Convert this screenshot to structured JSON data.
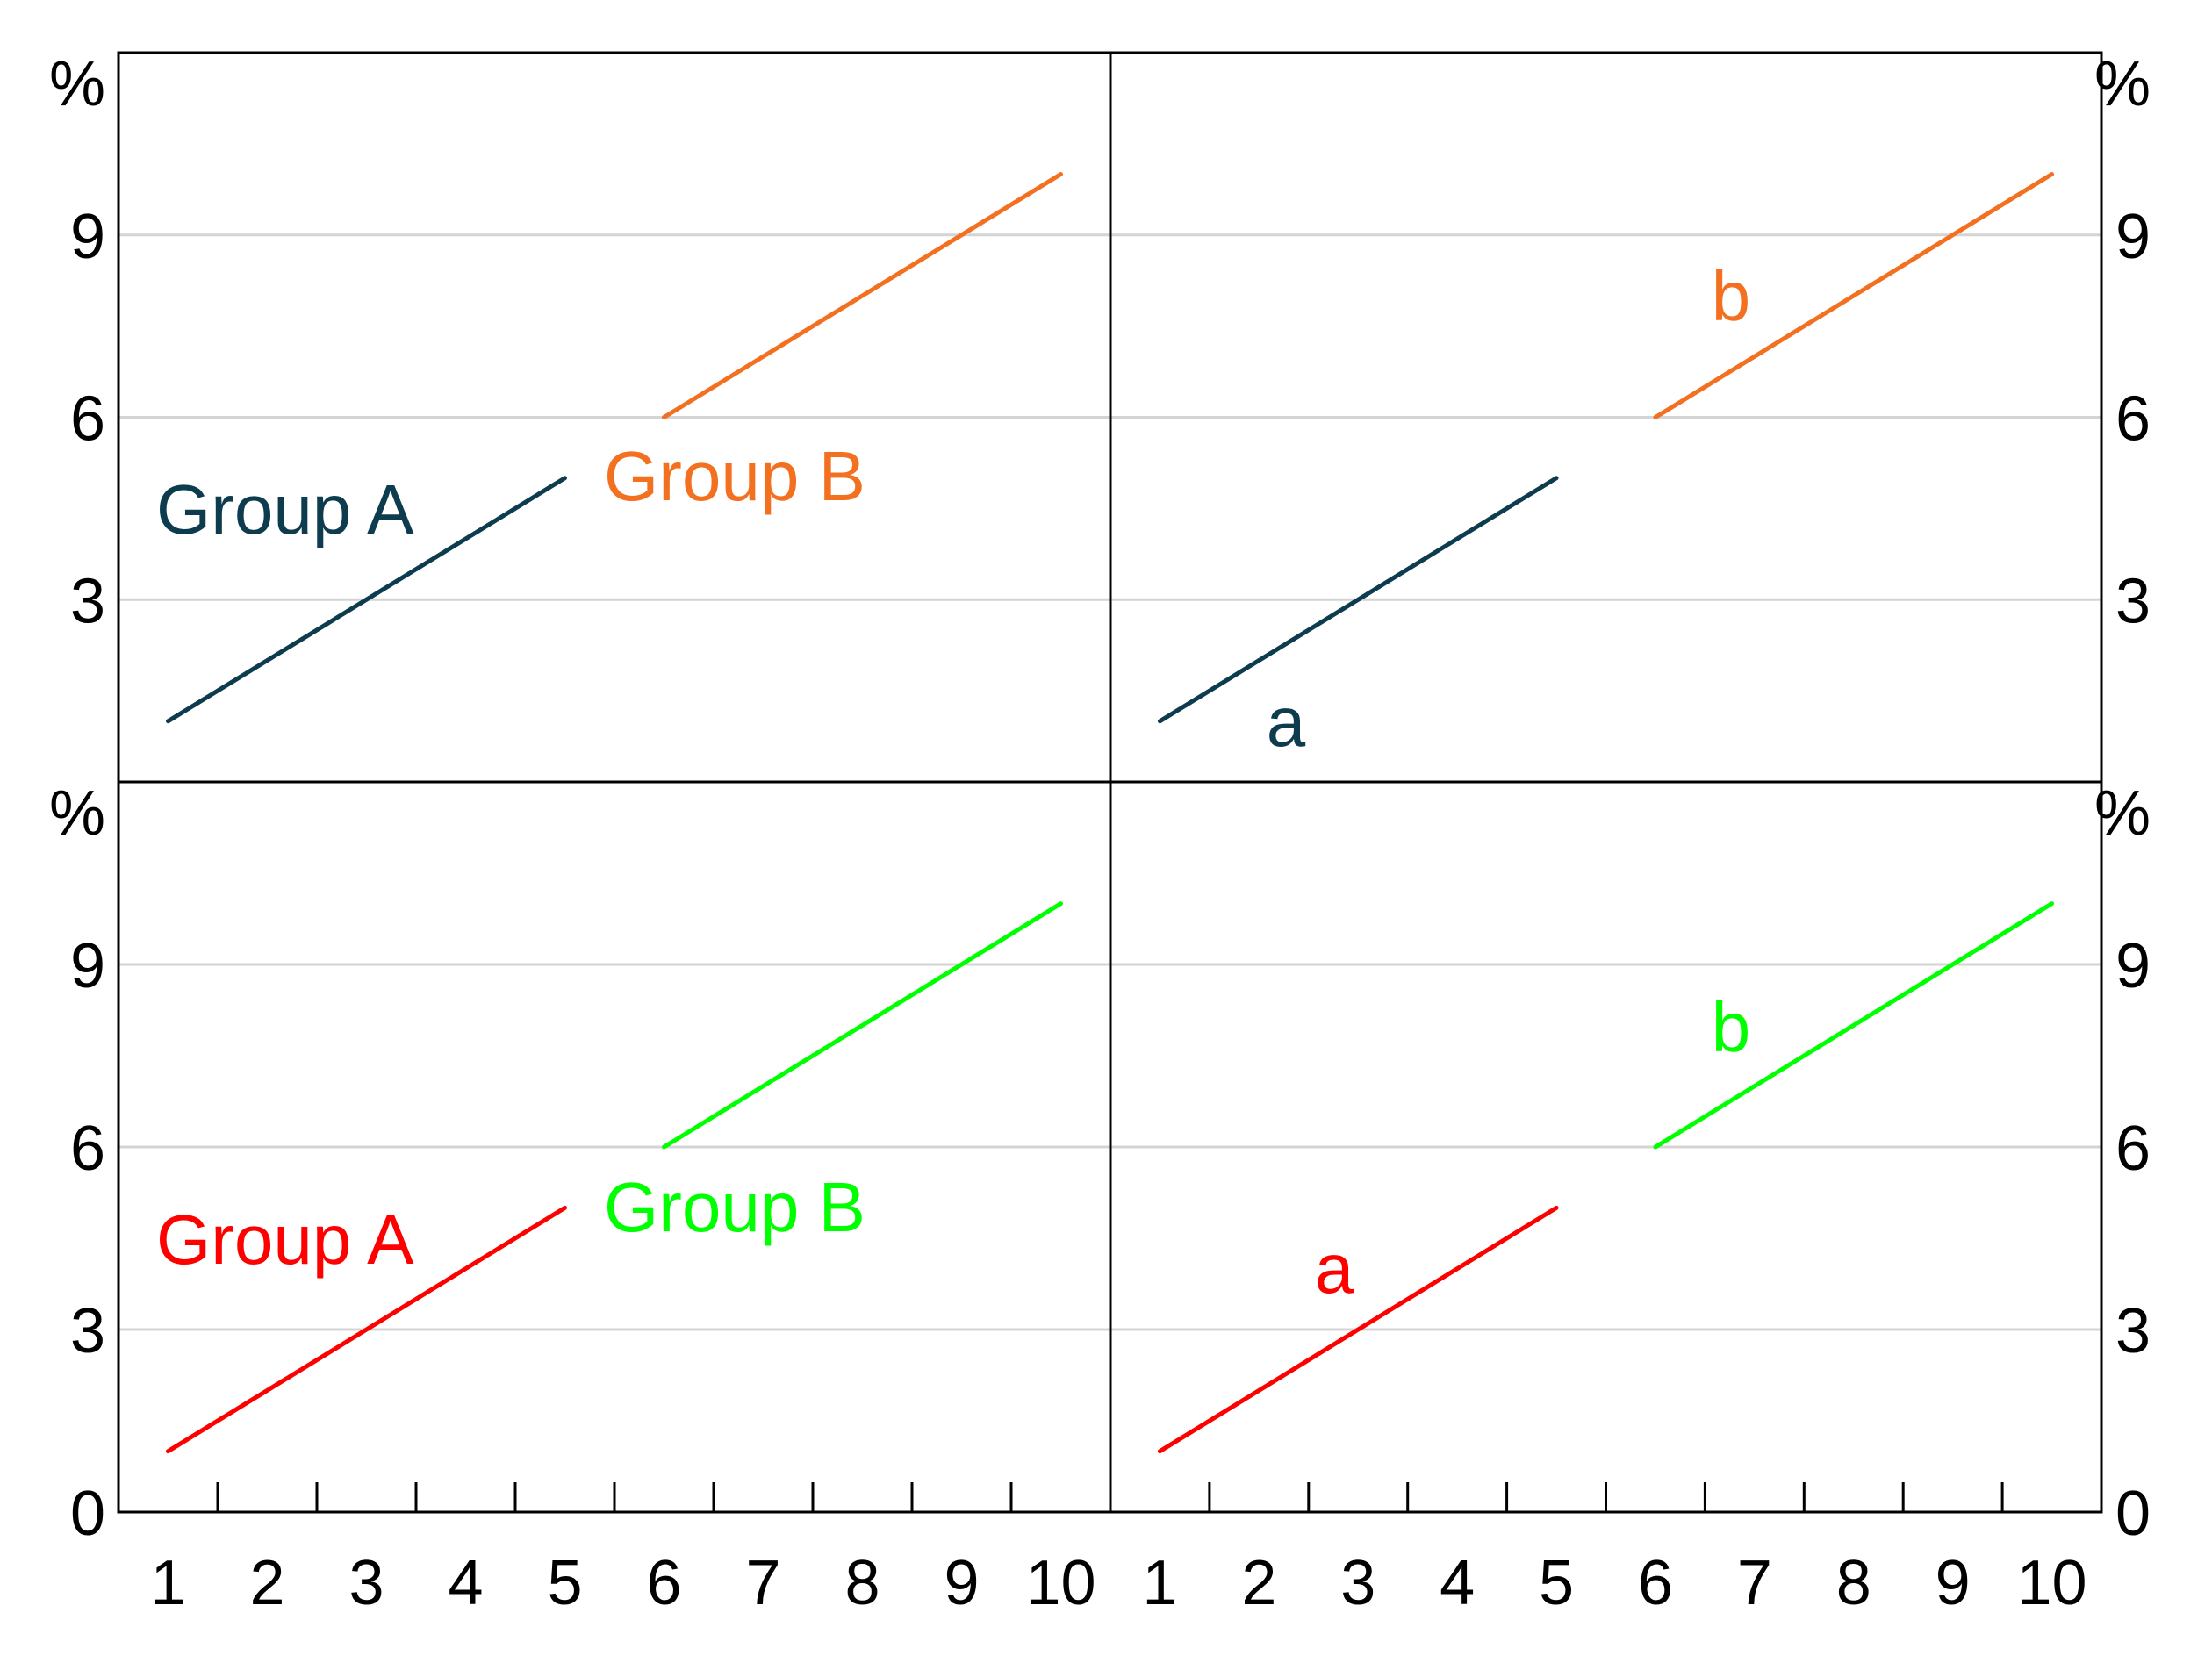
{
  "chart_data": [
    {
      "type": "line",
      "panel": "top-left",
      "unit_label": "%",
      "x_ticks": [
        1,
        2,
        3,
        4,
        5,
        6,
        7,
        8,
        9,
        10
      ],
      "y_ticks": [
        3,
        6,
        9
      ],
      "ylim": [
        0,
        12
      ],
      "xlim": [
        0.5,
        10.5
      ],
      "grid": "horizontal",
      "colors": {
        "series_a": "#0d3c4f",
        "series_b": "#f37021"
      },
      "series": [
        {
          "name": "Group A",
          "x": [
            1,
            5
          ],
          "y": [
            1,
            5
          ],
          "color": "#0d3c4f"
        },
        {
          "name": "Group B",
          "x": [
            6,
            10
          ],
          "y": [
            6,
            10
          ],
          "color": "#f37021"
        }
      ]
    },
    {
      "type": "line",
      "panel": "top-right",
      "unit_label": "%",
      "x_ticks": [
        1,
        2,
        3,
        4,
        5,
        6,
        7,
        8,
        9,
        10
      ],
      "y_ticks": [
        3,
        6,
        9
      ],
      "ylim": [
        0,
        12
      ],
      "xlim": [
        0.5,
        10.5
      ],
      "grid": "horizontal",
      "colors": {
        "series_a": "#0d3c4f",
        "series_b": "#f37021"
      },
      "series": [
        {
          "name": "a",
          "x": [
            1,
            5
          ],
          "y": [
            1,
            5
          ],
          "color": "#0d3c4f"
        },
        {
          "name": "b",
          "x": [
            6,
            10
          ],
          "y": [
            6,
            10
          ],
          "color": "#f37021"
        }
      ]
    },
    {
      "type": "line",
      "panel": "bottom-left",
      "unit_label": "%",
      "x_ticks": [
        1,
        2,
        3,
        4,
        5,
        6,
        7,
        8,
        9,
        10
      ],
      "y_ticks": [
        0,
        3,
        6,
        9
      ],
      "ylim": [
        0,
        12
      ],
      "xlim": [
        0.5,
        10.5
      ],
      "grid": "horizontal",
      "colors": {
        "series_a": "#ff0000",
        "series_b": "#00ff00"
      },
      "series": [
        {
          "name": "Group A",
          "x": [
            1,
            5
          ],
          "y": [
            1,
            5
          ],
          "color": "#ff0000"
        },
        {
          "name": "Group B",
          "x": [
            6,
            10
          ],
          "y": [
            6,
            10
          ],
          "color": "#00ff00"
        }
      ]
    },
    {
      "type": "line",
      "panel": "bottom-right",
      "unit_label": "%",
      "x_ticks": [
        1,
        2,
        3,
        4,
        5,
        6,
        7,
        8,
        9,
        10
      ],
      "y_ticks": [
        0,
        3,
        6,
        9
      ],
      "ylim": [
        0,
        12
      ],
      "xlim": [
        0.5,
        10.5
      ],
      "grid": "horizontal",
      "colors": {
        "series_a": "#ff0000",
        "series_b": "#00ff00"
      },
      "series": [
        {
          "name": "a",
          "x": [
            1,
            5
          ],
          "y": [
            1,
            5
          ],
          "color": "#ff0000"
        },
        {
          "name": "b",
          "x": [
            6,
            10
          ],
          "y": [
            6,
            10
          ],
          "color": "#00ff00"
        }
      ]
    }
  ]
}
